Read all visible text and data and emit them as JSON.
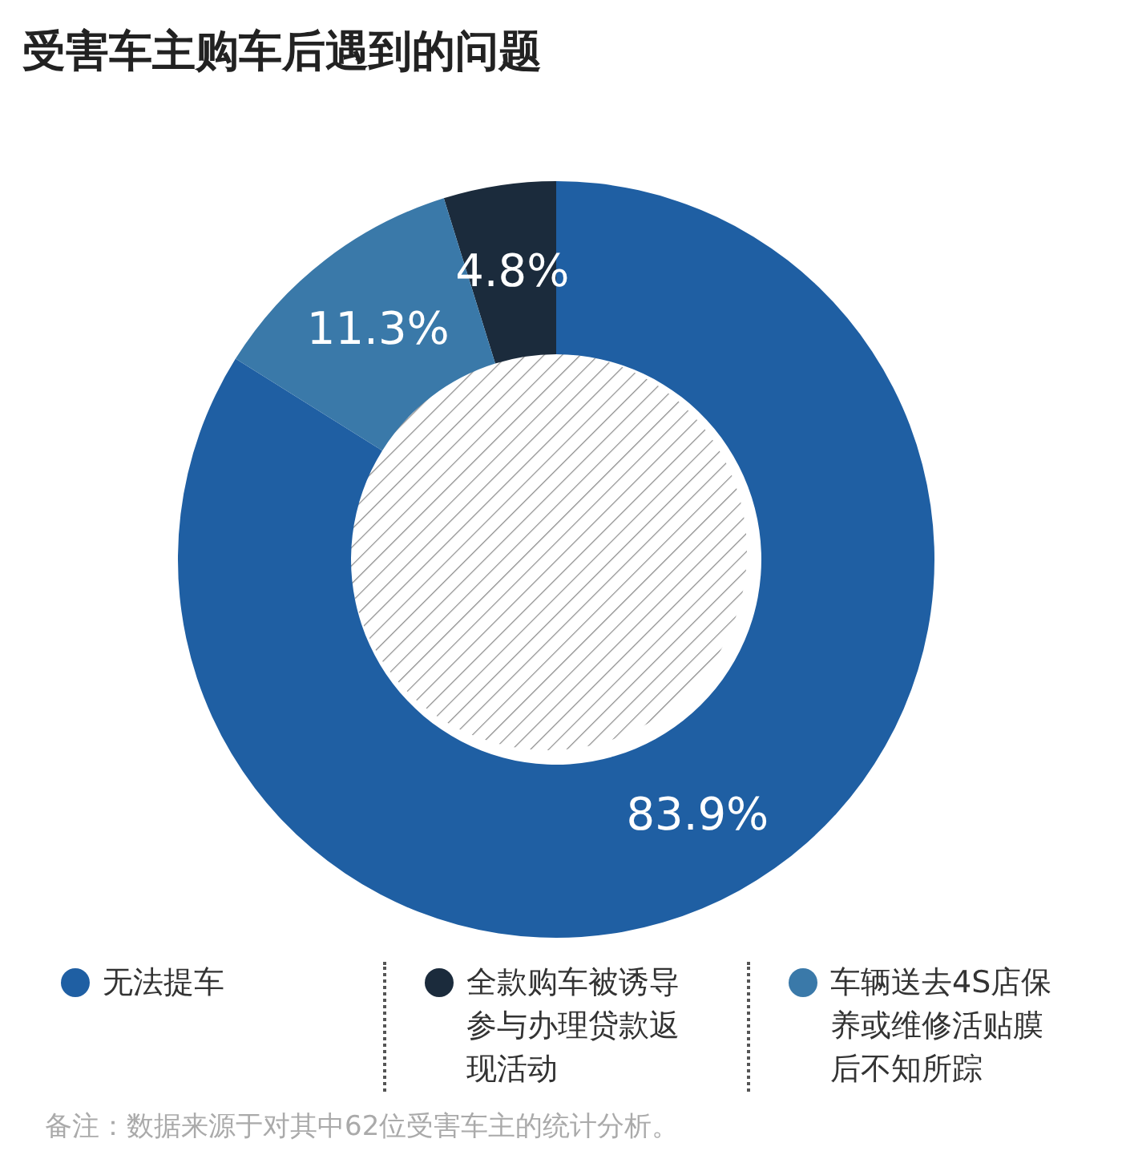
{
  "chart_data": {
    "type": "donut",
    "title": "受害车主购车后遇到的问题",
    "categories": [
      "无法提车",
      "全款购车被诱导参与办理贷款返现活动",
      "车辆送去4S店保养或维修活贴膜后不知所踪"
    ],
    "values": [
      83.9,
      4.8,
      11.3
    ],
    "colors": [
      "#1f5fa3",
      "#1b2b3c",
      "#3a79a9"
    ],
    "value_labels": [
      "83.9%",
      "4.8%",
      "11.3%"
    ],
    "legend": "bottom",
    "annotations": [
      "备注：数据来源于对其中62位受害车主的统计分析。"
    ]
  }
}
